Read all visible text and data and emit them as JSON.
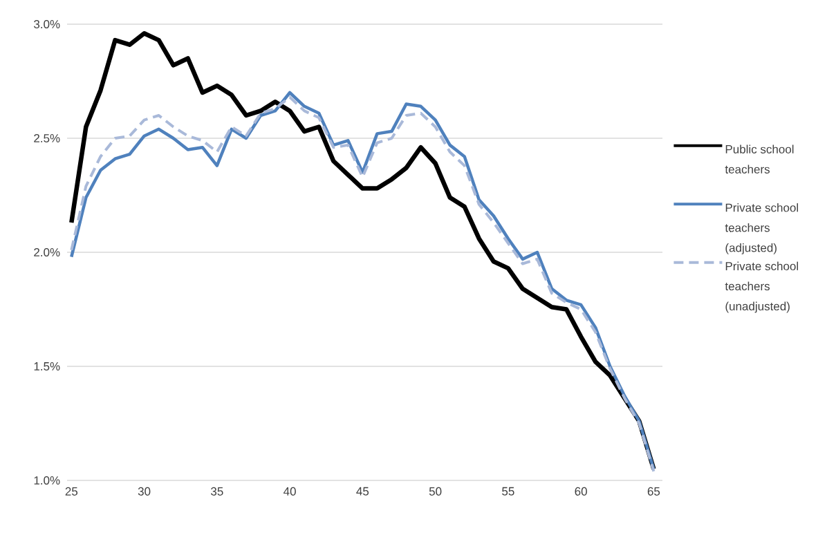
{
  "chart_data": {
    "type": "line",
    "x": [
      25,
      26,
      27,
      28,
      29,
      30,
      31,
      32,
      33,
      34,
      35,
      36,
      37,
      38,
      39,
      40,
      41,
      42,
      43,
      44,
      45,
      46,
      47,
      48,
      49,
      50,
      51,
      52,
      53,
      54,
      55,
      56,
      57,
      58,
      59,
      60,
      61,
      62,
      63,
      64,
      65
    ],
    "series": [
      {
        "name": "Public school teachers",
        "color": "#000000",
        "line_style": "solid",
        "values": [
          2.13,
          2.55,
          2.71,
          2.93,
          2.91,
          2.96,
          2.93,
          2.82,
          2.85,
          2.7,
          2.73,
          2.69,
          2.6,
          2.62,
          2.66,
          2.62,
          2.53,
          2.55,
          2.4,
          2.34,
          2.28,
          2.28,
          2.32,
          2.37,
          2.46,
          2.39,
          2.24,
          2.2,
          2.06,
          1.96,
          1.93,
          1.84,
          1.8,
          1.76,
          1.75,
          1.63,
          1.52,
          1.46,
          1.36,
          1.26,
          1.05
        ]
      },
      {
        "name": "Private school teachers (adjusted)",
        "color": "#4f81bd",
        "line_style": "solid",
        "values": [
          1.98,
          2.24,
          2.36,
          2.41,
          2.43,
          2.51,
          2.54,
          2.5,
          2.45,
          2.46,
          2.38,
          2.54,
          2.5,
          2.6,
          2.62,
          2.7,
          2.64,
          2.61,
          2.47,
          2.49,
          2.35,
          2.52,
          2.53,
          2.65,
          2.64,
          2.58,
          2.47,
          2.42,
          2.23,
          2.16,
          2.06,
          1.97,
          2.0,
          1.84,
          1.79,
          1.77,
          1.67,
          1.5,
          1.37,
          1.26,
          1.05
        ]
      },
      {
        "name": "Private school teachers (unadjusted)",
        "color": "#a9b9d9",
        "line_style": "dashed",
        "values": [
          2.01,
          2.29,
          2.42,
          2.5,
          2.51,
          2.58,
          2.6,
          2.55,
          2.51,
          2.49,
          2.44,
          2.55,
          2.51,
          2.61,
          2.63,
          2.68,
          2.62,
          2.59,
          2.46,
          2.47,
          2.33,
          2.48,
          2.5,
          2.6,
          2.61,
          2.55,
          2.44,
          2.38,
          2.21,
          2.13,
          2.04,
          1.95,
          1.97,
          1.82,
          1.78,
          1.75,
          1.65,
          1.49,
          1.36,
          1.25,
          1.04
        ]
      }
    ],
    "xlim": [
      24.7,
      65.6
    ],
    "xticks": [
      25,
      30,
      35,
      40,
      45,
      50,
      55,
      60,
      65
    ],
    "ylim": [
      1.0,
      3.0
    ],
    "yticks": [
      {
        "value": 1.0,
        "label": "1.0%"
      },
      {
        "value": 1.5,
        "label": "1.5%"
      },
      {
        "value": 2.0,
        "label": "2.0%"
      },
      {
        "value": 2.5,
        "label": "2.5%"
      },
      {
        "value": 3.0,
        "label": "3.0%"
      }
    ],
    "grid": "y",
    "legend": "right"
  }
}
